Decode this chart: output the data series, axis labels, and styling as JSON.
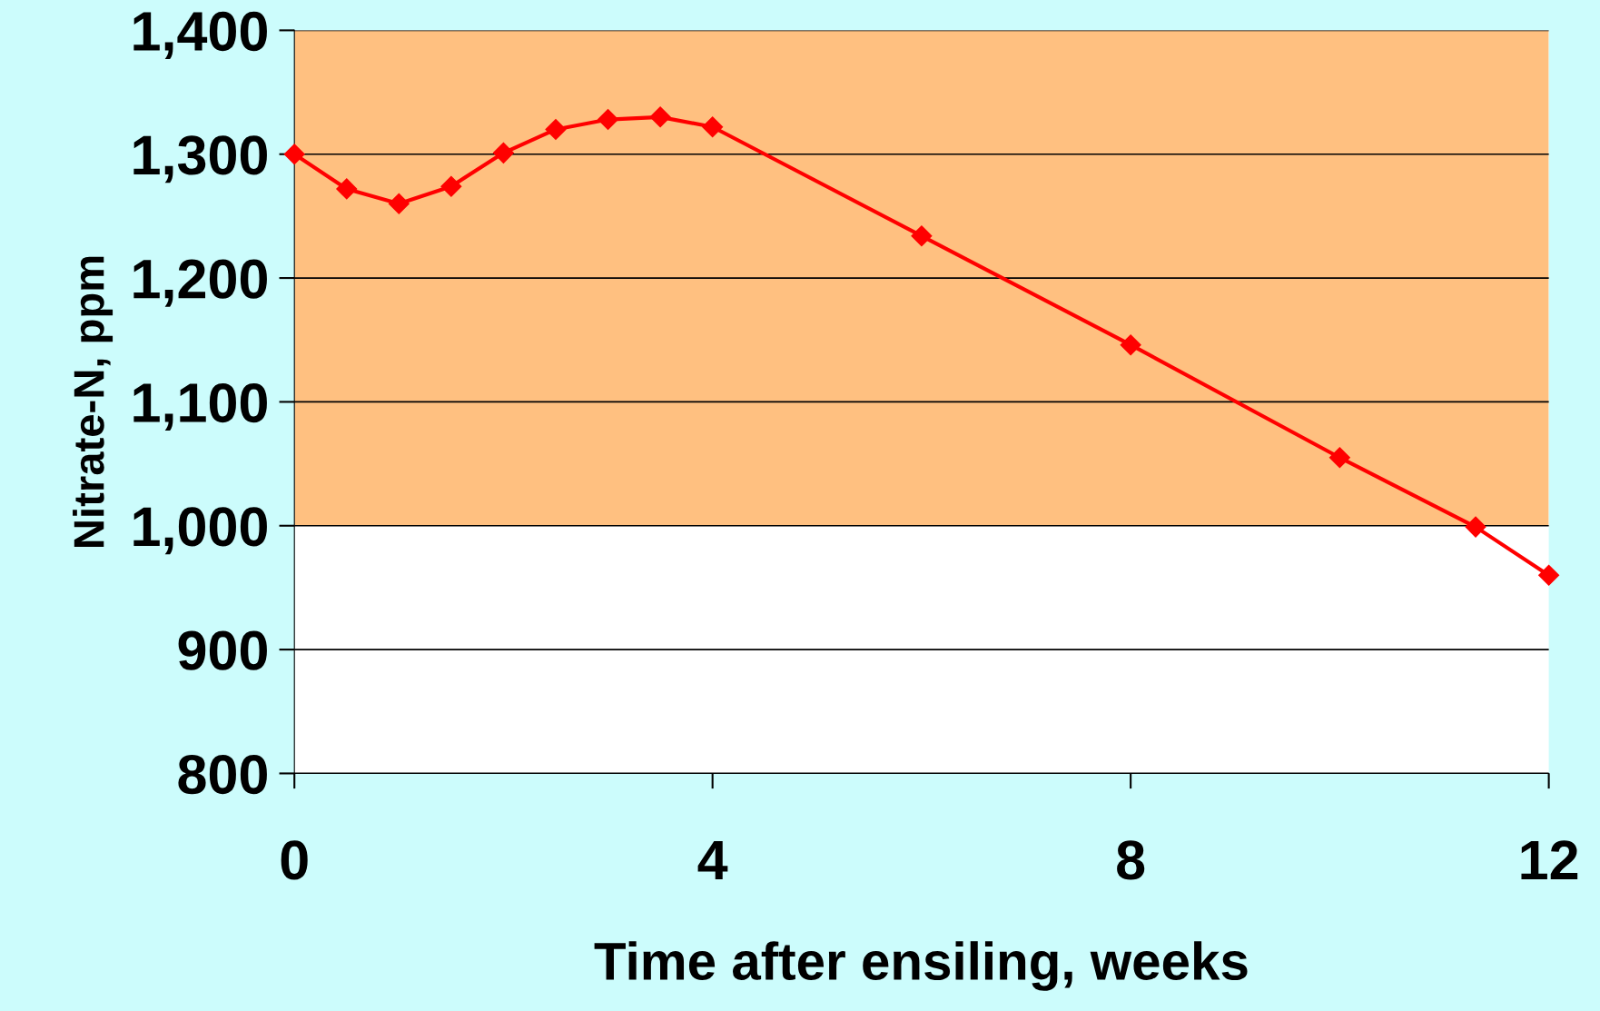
{
  "chart_data": {
    "type": "line",
    "xlabel": "Time after ensiling, weeks",
    "ylabel": "Nitrate-N, ppm",
    "x": [
      0,
      0.5,
      1,
      1.5,
      2,
      2.5,
      3,
      3.5,
      4,
      6,
      8,
      10,
      11.3,
      12
    ],
    "series": [
      {
        "color": "#ff0000",
        "values": [
          1300,
          1272,
          1260,
          1274,
          1301,
          1320,
          1328,
          1330,
          1322,
          1234,
          1146,
          1055,
          999,
          960
        ]
      }
    ],
    "marker": "diamond",
    "line_style": "solid",
    "xlim": [
      0,
      12
    ],
    "xticks": [
      0,
      4,
      8,
      12
    ],
    "ylim": [
      800,
      1400
    ],
    "yticks": [
      {
        "value": 800,
        "label": "800"
      },
      {
        "value": 900,
        "label": "900"
      },
      {
        "value": 1000,
        "label": "1,000"
      },
      {
        "value": 1100,
        "label": "1,100"
      },
      {
        "value": 1200,
        "label": "1,200"
      },
      {
        "value": 1300,
        "label": "1,300"
      },
      {
        "value": 1400,
        "label": "1,400"
      }
    ],
    "grid": "y",
    "bands": [
      {
        "axis": "y",
        "from": 1000,
        "to": 1400,
        "color": "#ffc080"
      }
    ]
  }
}
